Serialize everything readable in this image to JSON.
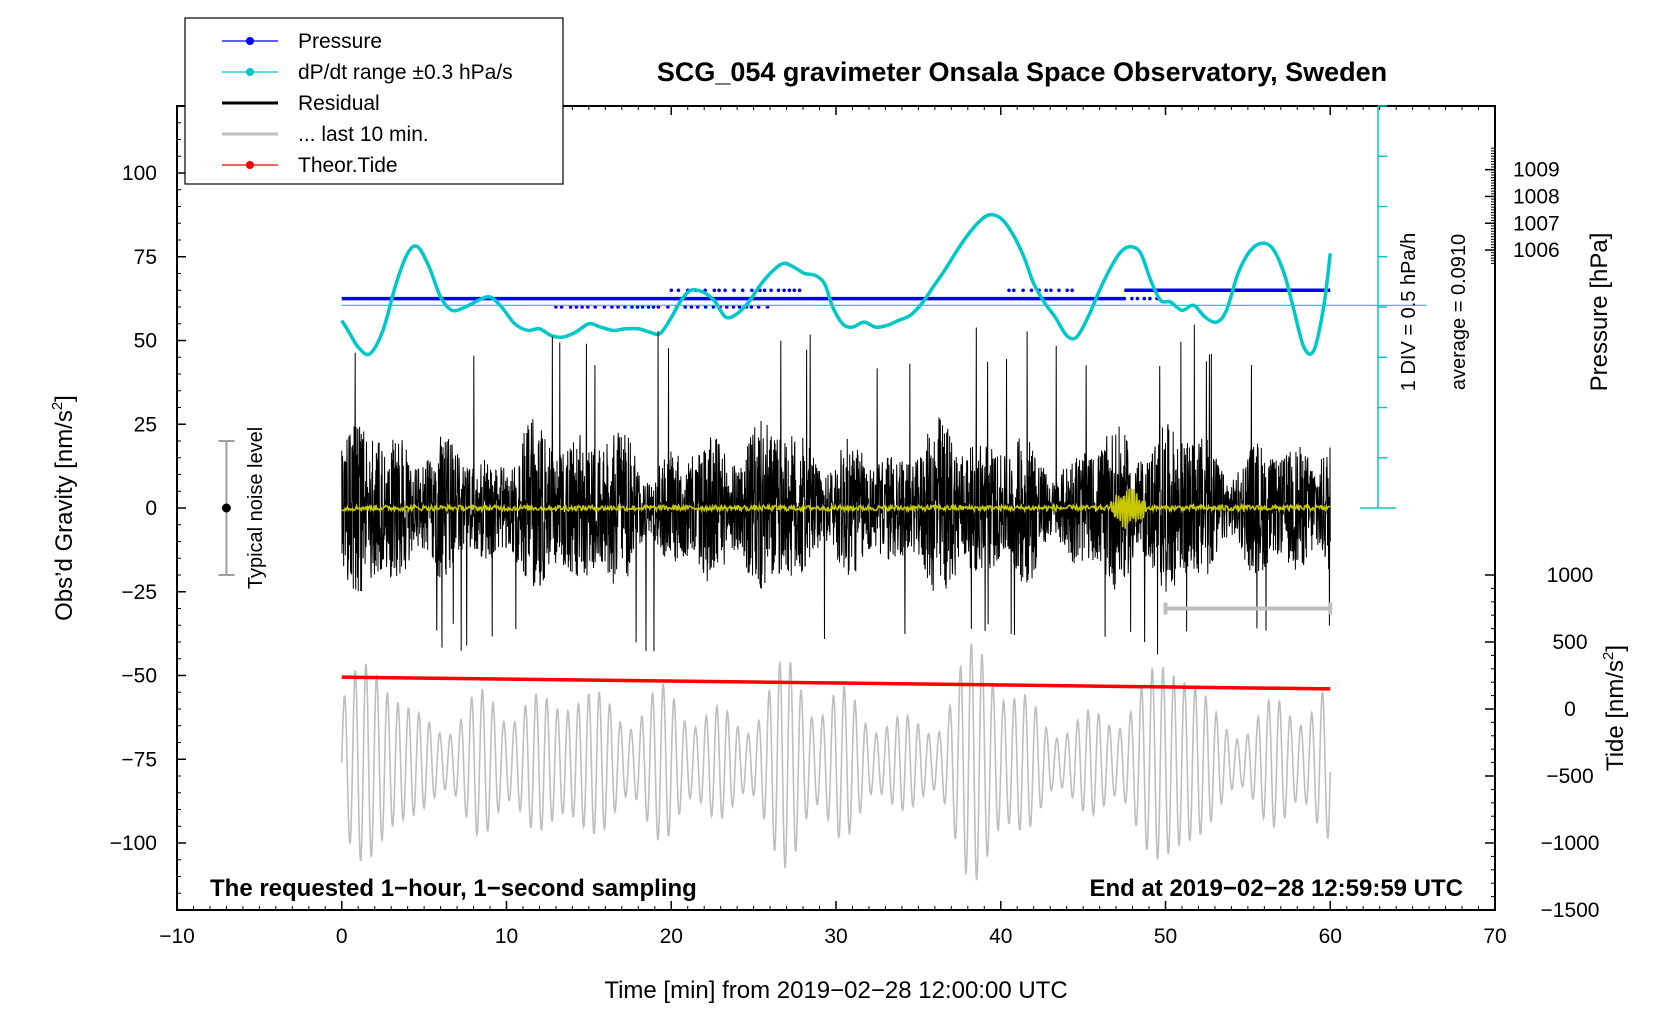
{
  "chart_data": {
    "type": "line",
    "title": "SCG_054 gravimeter Onsala Space Observatory, Sweden",
    "xlabel": "Time [min] from 2019−02−28 12:00:00 UTC",
    "ylabel_left": "Obs’d Gravity [nm/s",
    "ylabel_left_sup": "2",
    "ylabel_left_end": "]",
    "ylabel_right_top": "Pressure [hPa]",
    "ylabel_right_bottom": "Tide [nm/s",
    "ylabel_right_bottom_sup": "2",
    "ylabel_right_bottom_end": "]",
    "xlim": [
      -10,
      70
    ],
    "ylim": [
      -120,
      120
    ],
    "x_ticks": [
      -10,
      0,
      10,
      20,
      30,
      40,
      50,
      60,
      70
    ],
    "x_tick_labels": [
      "−10",
      "0",
      "10",
      "20",
      "30",
      "40",
      "50",
      "60",
      "70"
    ],
    "y_ticks": [
      100,
      75,
      50,
      25,
      0,
      -25,
      -50,
      -75,
      -100
    ],
    "y_tick_labels": [
      "100",
      "75",
      "50",
      "25",
      "0",
      "−25",
      "−50",
      "−75",
      "−100"
    ],
    "pressure_axis": {
      "ticks": [
        1009,
        1008,
        1007,
        1006
      ],
      "tick_labels": [
        "1009",
        "1008",
        "1007",
        "1006"
      ],
      "map": [
        [
          1009,
          101
        ],
        [
          1006,
          77
        ]
      ]
    },
    "tide_axis": {
      "ticks": [
        1000,
        500,
        0,
        -500,
        -1000,
        -1500
      ],
      "tick_labels": [
        "1000",
        "500",
        "0",
        "−500",
        "−1000",
        "−1500"
      ],
      "map": [
        [
          1000,
          -20
        ],
        [
          -1500,
          -120
        ]
      ]
    },
    "dpdt_scale": {
      "label_1": "1 DIV = 0.5 hPa/h",
      "label_2": "average = 0.0910",
      "x": 62.9,
      "y_range": [
        0,
        120
      ],
      "divisions": 8,
      "reference_y": 60.5
    },
    "noise_bar": {
      "label": "Typical noise level",
      "x": -7,
      "y_center": 0,
      "half_range": 20
    },
    "last_10_min_bracket": {
      "x": [
        50,
        60
      ],
      "y": -30
    },
    "notes": {
      "left": "The requested 1−hour, 1−second sampling",
      "right": "End at 2019−02−28 12:59:59 UTC"
    },
    "legend": {
      "placement": "top-left",
      "entries": [
        {
          "label": "Pressure",
          "color": "#0000ff",
          "marker": true
        },
        {
          "label": "dP/dt range ±0.3 hPa/s",
          "color": "#00c8c8",
          "marker": true
        },
        {
          "label": "Residual",
          "color": "#000000",
          "marker": false
        },
        {
          "label": "... last 10 min.",
          "color": "#bebebe",
          "marker": false
        },
        {
          "label": "Theor.Tide",
          "color": "#ff0000",
          "marker": true
        }
      ]
    },
    "series": [
      {
        "name": "Pressure",
        "color": "#0000ff",
        "segments": [
          {
            "x": [
              0,
              47.5
            ],
            "y": 62.5
          },
          {
            "x": [
              47.5,
              60
            ],
            "y": 65.0
          }
        ]
      },
      {
        "name": "dP/dt range ±0.3 hPa/s",
        "color": "#00c8c8",
        "x": [
          0,
          0.5,
          1,
          1.7,
          2.5,
          3.3,
          4,
          4.6,
          5.3,
          6,
          6.7,
          7.5,
          8.3,
          9,
          9.7,
          10.5,
          11.3,
          12,
          12.7,
          13.4,
          14.2,
          15,
          15.7,
          16.5,
          17.2,
          18,
          18.7,
          19.3,
          19.9,
          20.6,
          21.2,
          21.9,
          22.6,
          23.3,
          24,
          24.7,
          25.4,
          26.1,
          26.8,
          27.4,
          28.1,
          28.7,
          29.3,
          29.8,
          30.4,
          31,
          31.7,
          32.4,
          33.1,
          33.8,
          34.5,
          35.2,
          35.9,
          36.6,
          37.3,
          38,
          38.7,
          39.3,
          40,
          40.7,
          41.4,
          42,
          42.7,
          43.3,
          44,
          44.6,
          45.3,
          46,
          46.7,
          47.3,
          47.9,
          48.5,
          49.1,
          49.7,
          50.3,
          51,
          51.7,
          52.4,
          53.1,
          53.7,
          54.4,
          55.1,
          55.8,
          56.5,
          57.2,
          57.8,
          58.4,
          59,
          59.6,
          60
        ],
        "y": [
          56,
          52,
          48,
          46,
          53,
          67,
          76,
          78,
          72,
          63,
          59,
          60,
          62,
          63,
          60,
          55,
          53,
          53.5,
          51.5,
          51,
          52.5,
          55,
          54,
          53,
          53.5,
          53.5,
          52.5,
          52,
          56,
          62,
          65,
          64.5,
          62,
          57,
          58,
          61.5,
          66.5,
          70.5,
          73,
          72,
          70,
          69.5,
          67,
          60,
          55,
          54,
          55.5,
          54,
          54.5,
          56,
          57.5,
          61,
          66,
          71,
          76.5,
          81.5,
          85.5,
          87.5,
          86.5,
          82,
          75,
          67,
          61,
          57,
          51.5,
          51,
          57,
          65,
          72,
          76.5,
          78,
          76,
          68,
          62,
          61.5,
          59,
          60.5,
          57,
          55.5,
          59,
          70,
          76.5,
          79,
          77.5,
          70,
          59,
          48,
          47,
          60,
          76
        ]
      },
      {
        "name": "Residual",
        "color": "#000000",
        "x_range": [
          0,
          60
        ],
        "typical_amplitude": 25,
        "peak_range": [
          -45,
          55
        ]
      },
      {
        "name": "... last 10 min.",
        "color": "#bebebe",
        "x_range": [
          0,
          60
        ],
        "center_y": -76,
        "typical_amplitude": 14,
        "peak_range": [
          -115,
          -20
        ]
      },
      {
        "name": "Theor.Tide",
        "color": "#ff0000",
        "x": [
          0,
          60
        ],
        "y": [
          -50.5,
          -54
        ]
      },
      {
        "name": "",
        "color": "#c8c800",
        "x_range": [
          0,
          60
        ],
        "center_y": 0,
        "typical_amplitude": 0.8,
        "burst": {
          "x": [
            46.5,
            49
          ],
          "amplitude": 6
        }
      }
    ]
  }
}
